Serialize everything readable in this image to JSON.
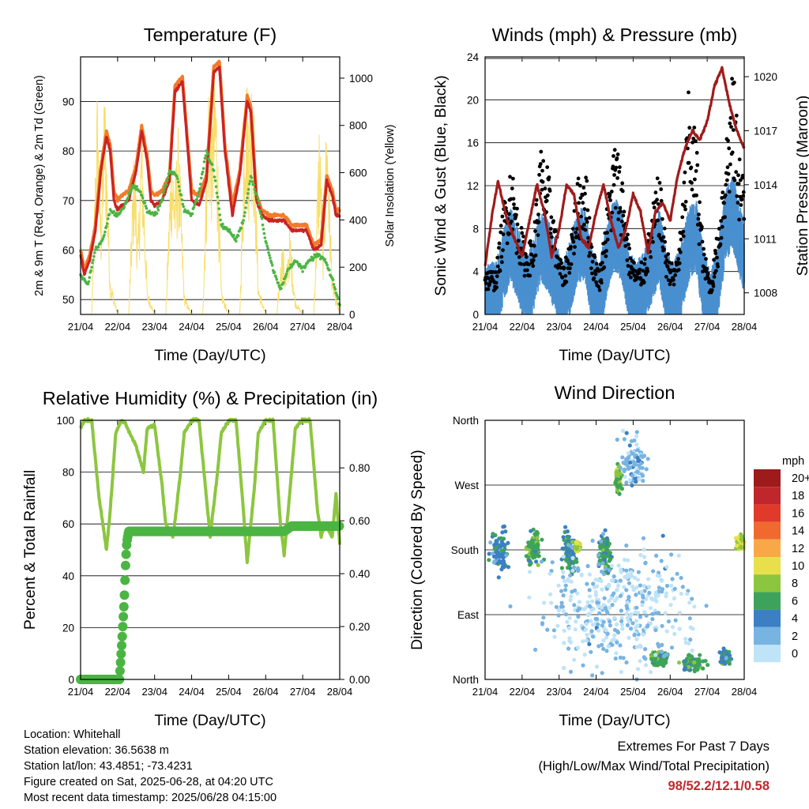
{
  "time_axis": {
    "ticks": [
      "21/04",
      "22/04",
      "23/04",
      "24/04",
      "25/04",
      "26/04",
      "27/04",
      "28/04"
    ],
    "label": "Time (Day/UTC)"
  },
  "colors": {
    "temp_2m": "#cc2222",
    "temp_9m": "#f07c2a",
    "dewpoint": "#4bb543",
    "solar": "#f8de6a",
    "wind": "#4a90d0",
    "gust": "#000000",
    "pressure": "#a01b1b",
    "rh": "#8cc63f",
    "precip": "#4bb543"
  },
  "chart_data": [
    {
      "id": "temperature",
      "type": "line",
      "title": "Temperature (F)",
      "xlabel": "Time (Day/UTC)",
      "ylabel": "2m & 9m T (Red, Orange) & 2m Td (Green)",
      "y2label": "Solar Insolation (Yellow)",
      "ylim": [
        47,
        99
      ],
      "y2lim": [
        0,
        1090
      ],
      "yticks": [
        50,
        60,
        70,
        80,
        90
      ],
      "y2ticks": [
        0,
        200,
        400,
        600,
        800,
        1000
      ],
      "x_days": [
        0,
        7
      ],
      "series": [
        {
          "key": "t2m",
          "style": "line",
          "color": "#cc2222",
          "x": [
            0,
            0.1,
            0.25,
            0.4,
            0.55,
            0.7,
            0.8,
            0.9,
            1.0,
            1.1,
            1.3,
            1.5,
            1.65,
            1.8,
            1.9,
            2.0,
            2.2,
            2.4,
            2.55,
            2.75,
            2.9,
            3.0,
            3.2,
            3.4,
            3.6,
            3.75,
            3.9,
            4.1,
            4.3,
            4.5,
            4.6,
            4.75,
            4.9,
            5.1,
            5.3,
            5.5,
            5.7,
            5.9,
            6.1,
            6.3,
            6.5,
            6.65,
            6.8,
            6.9,
            7.0
          ],
          "y": [
            59,
            55,
            58,
            64,
            76,
            83,
            80,
            70,
            68,
            69,
            70,
            76,
            84,
            78,
            70,
            69,
            70,
            74,
            92,
            94,
            80,
            70,
            69,
            74,
            96,
            97,
            80,
            67,
            75,
            90,
            88,
            70,
            67,
            66,
            66,
            66,
            64,
            64,
            64,
            60,
            61,
            74,
            71,
            67,
            67
          ]
        },
        {
          "key": "t9m",
          "style": "line",
          "color": "#f07c2a",
          "x": [
            0,
            0.1,
            0.25,
            0.4,
            0.55,
            0.7,
            0.8,
            0.9,
            1.0,
            1.1,
            1.3,
            1.5,
            1.65,
            1.8,
            1.9,
            2.0,
            2.2,
            2.4,
            2.55,
            2.75,
            2.9,
            3.0,
            3.2,
            3.4,
            3.6,
            3.75,
            3.9,
            4.1,
            4.3,
            4.5,
            4.6,
            4.75,
            4.9,
            5.1,
            5.3,
            5.5,
            5.7,
            5.9,
            6.1,
            6.3,
            6.5,
            6.65,
            6.8,
            6.9,
            7.0
          ],
          "y": [
            60,
            56,
            59,
            65,
            77,
            84,
            81,
            72,
            70,
            71,
            72,
            77,
            85,
            79,
            72,
            71,
            72,
            75,
            93,
            95,
            81,
            72,
            71,
            75,
            97,
            98,
            81,
            69,
            76,
            91,
            89,
            71,
            68,
            67,
            67,
            67,
            65,
            65,
            65,
            61,
            62,
            75,
            72,
            68,
            68
          ]
        },
        {
          "key": "td2m",
          "style": "dots",
          "color": "#4bb543",
          "x": [
            0,
            0.2,
            0.4,
            0.6,
            0.8,
            1.0,
            1.2,
            1.4,
            1.6,
            1.8,
            2.0,
            2.2,
            2.4,
            2.6,
            2.8,
            3.0,
            3.2,
            3.4,
            3.6,
            3.8,
            4.0,
            4.2,
            4.4,
            4.6,
            4.8,
            5.0,
            5.2,
            5.4,
            5.6,
            5.8,
            6.0,
            6.2,
            6.4,
            6.6,
            6.8,
            7.0
          ],
          "y": [
            55,
            53,
            60,
            62,
            68,
            67,
            69,
            73,
            72,
            68,
            67,
            70,
            76,
            75,
            68,
            67,
            72,
            80,
            76,
            65,
            64,
            62,
            66,
            75,
            70,
            62,
            56,
            52,
            56,
            58,
            56,
            58,
            59,
            58,
            54,
            49
          ]
        },
        {
          "key": "solar",
          "style": "line",
          "color": "#f8de6a",
          "axis": "y2",
          "x": [
            0,
            0.3,
            0.45,
            0.55,
            0.65,
            0.8,
            1.0,
            1.3,
            1.45,
            1.55,
            1.65,
            1.8,
            2.0,
            2.3,
            2.45,
            2.55,
            2.65,
            2.8,
            3.0,
            3.3,
            3.45,
            3.55,
            3.65,
            3.8,
            4.0,
            4.3,
            4.45,
            4.55,
            4.65,
            4.8,
            5.0,
            5.3,
            5.45,
            5.55,
            5.65,
            5.8,
            6.0,
            6.3,
            6.45,
            6.55,
            6.65,
            6.8,
            7.0
          ],
          "y": [
            0,
            0,
            900,
            400,
            950,
            150,
            0,
            0,
            700,
            300,
            800,
            100,
            0,
            0,
            700,
            550,
            750,
            80,
            0,
            0,
            950,
            800,
            1000,
            100,
            0,
            0,
            1000,
            850,
            1050,
            120,
            0,
            0,
            300,
            150,
            350,
            60,
            0,
            0,
            800,
            300,
            850,
            150,
            0
          ]
        }
      ]
    },
    {
      "id": "winds",
      "type": "line",
      "title": "Winds (mph) & Pressure (mb)",
      "xlabel": "Time (Day/UTC)",
      "ylabel": "Sonic Wind & Gust (Blue, Black)",
      "y2label": "Station Pressure (Maroon)",
      "ylim": [
        0,
        24
      ],
      "y2lim": [
        1006.8,
        1021.1
      ],
      "yticks": [
        0,
        4,
        8,
        12,
        16,
        20,
        24
      ],
      "y2ticks": [
        1008,
        1011,
        1014,
        1017,
        1020
      ],
      "x_days": [
        0,
        7
      ],
      "series": [
        {
          "key": "wind",
          "style": "band",
          "color": "#4a90d0",
          "x": [
            0,
            0.3,
            0.5,
            0.7,
            0.9,
            1.1,
            1.3,
            1.5,
            1.7,
            1.9,
            2.1,
            2.3,
            2.5,
            2.7,
            2.9,
            3.1,
            3.3,
            3.5,
            3.7,
            3.9,
            4.1,
            4.3,
            4.5,
            4.7,
            4.9,
            5.1,
            5.3,
            5.5,
            5.7,
            5.9,
            6.1,
            6.3,
            6.5,
            6.7,
            6.9,
            7.0
          ],
          "y": [
            2,
            2,
            5,
            7,
            5,
            3,
            4,
            7,
            6,
            4,
            2,
            4,
            7,
            7,
            3,
            2,
            6,
            8,
            7,
            3,
            2,
            3,
            5,
            7,
            3,
            2,
            4,
            7,
            8,
            3,
            1,
            4,
            9,
            10,
            7,
            6
          ]
        },
        {
          "key": "gust",
          "style": "dots",
          "color": "#000000",
          "x": [
            0,
            0.3,
            0.5,
            0.7,
            0.9,
            1.1,
            1.3,
            1.5,
            1.7,
            1.9,
            2.1,
            2.3,
            2.5,
            2.7,
            2.9,
            3.1,
            3.3,
            3.5,
            3.7,
            3.9,
            4.1,
            4.3,
            4.5,
            4.7,
            4.9,
            5.1,
            5.3,
            5.5,
            5.7,
            5.9,
            6.1,
            6.3,
            6.5,
            6.7,
            6.9,
            7.0
          ],
          "y": [
            4,
            4,
            10,
            14,
            9,
            6,
            7,
            15,
            13,
            8,
            4,
            7,
            12,
            14,
            6,
            4,
            10,
            16,
            13,
            6,
            4,
            5,
            9,
            13,
            6,
            4,
            8,
            20,
            16,
            6,
            3,
            8,
            16,
            22,
            14,
            12
          ]
        },
        {
          "key": "pressure",
          "style": "line",
          "color": "#a01b1b",
          "axis": "y2",
          "x": [
            0,
            0.2,
            0.35,
            0.6,
            0.8,
            1.0,
            1.2,
            1.4,
            1.6,
            1.8,
            2.0,
            2.2,
            2.4,
            2.6,
            2.8,
            3.0,
            3.2,
            3.4,
            3.6,
            3.8,
            4.0,
            4.2,
            4.4,
            4.6,
            4.8,
            5.0,
            5.2,
            5.4,
            5.6,
            5.8,
            6.0,
            6.2,
            6.4,
            6.6,
            6.8,
            7.0
          ],
          "y": [
            1009.5,
            1012.5,
            1014.2,
            1012.0,
            1011.0,
            1010.0,
            1012.0,
            1014.0,
            1012.5,
            1010.0,
            1011.5,
            1014.0,
            1013.5,
            1011.0,
            1010.5,
            1012.5,
            1014.0,
            1012.0,
            1010.5,
            1011.5,
            1013.5,
            1012.5,
            1010.2,
            1012.5,
            1013.0,
            1012.0,
            1014.5,
            1016.0,
            1017.0,
            1016.5,
            1017.5,
            1019.5,
            1020.5,
            1018.5,
            1017.0,
            1016.0
          ]
        }
      ]
    },
    {
      "id": "humidity",
      "type": "line",
      "title": "Relative Humidity (%) & Precipitation (in)",
      "xlabel": "Time (Day/UTC)",
      "ylabel": "Percent & Total Rainfall",
      "ylim": [
        0,
        100
      ],
      "y2lim": [
        0,
        0.98
      ],
      "yticks": [
        0,
        20,
        40,
        60,
        80,
        100
      ],
      "y2ticks": [
        0.0,
        0.2,
        0.4,
        0.6,
        0.8
      ],
      "y2ticklabels": [
        "0.00",
        "0.20",
        "0.40",
        "0.60",
        "0.80"
      ],
      "x_days": [
        0,
        7
      ],
      "series": [
        {
          "key": "rh",
          "style": "line",
          "color": "#8cc63f",
          "x": [
            0,
            0.1,
            0.3,
            0.5,
            0.7,
            0.8,
            0.95,
            1.1,
            1.2,
            1.3,
            1.5,
            1.7,
            1.8,
            2.0,
            2.2,
            2.3,
            2.5,
            2.7,
            2.8,
            3.0,
            3.2,
            3.4,
            3.5,
            3.7,
            3.8,
            4.0,
            4.2,
            4.4,
            4.5,
            4.7,
            4.8,
            5.0,
            5.2,
            5.4,
            5.5,
            5.7,
            5.8,
            6.0,
            6.2,
            6.4,
            6.5,
            6.6,
            6.8,
            6.9,
            7.0
          ],
          "y": [
            97,
            100,
            100,
            70,
            50,
            65,
            95,
            100,
            99,
            96,
            90,
            80,
            97,
            98,
            75,
            60,
            55,
            80,
            95,
            100,
            100,
            70,
            55,
            80,
            95,
            100,
            100,
            65,
            45,
            75,
            95,
            100,
            100,
            60,
            48,
            80,
            97,
            100,
            100,
            65,
            55,
            60,
            55,
            72,
            52
          ]
        },
        {
          "key": "precip",
          "style": "thick",
          "color": "#4bb543",
          "axis": "y2",
          "x": [
            0,
            1.05,
            1.12,
            1.18,
            1.22,
            1.25,
            1.3,
            2.0,
            3.0,
            4.0,
            5.0,
            5.5,
            5.7,
            6.0,
            7.0
          ],
          "y": [
            0,
            0,
            0.15,
            0.3,
            0.45,
            0.52,
            0.56,
            0.56,
            0.56,
            0.56,
            0.56,
            0.56,
            0.58,
            0.58,
            0.58
          ]
        }
      ]
    },
    {
      "id": "direction",
      "type": "scatter",
      "title": "Wind Direction",
      "xlabel": "Time (Day/UTC)",
      "ylabel": "Direction (Colored By Speed)",
      "ylim": [
        0,
        360
      ],
      "ytick_values": [
        0,
        90,
        180,
        270,
        360
      ],
      "ytick_labels": [
        "North",
        "East",
        "South",
        "West",
        "North"
      ],
      "x_days": [
        0,
        7
      ],
      "clusters": [
        {
          "x": 0.4,
          "dir": 180,
          "spread_x": 0.35,
          "spread_dir": 45,
          "speed": 4
        },
        {
          "x": 1.3,
          "dir": 185,
          "spread_x": 0.3,
          "spread_dir": 35,
          "speed": 6
        },
        {
          "x": 2.3,
          "dir": 180,
          "spread_x": 0.3,
          "spread_dir": 40,
          "speed": 5
        },
        {
          "x": 2.5,
          "dir": 185,
          "spread_x": 0.1,
          "spread_dir": 10,
          "speed": 9
        },
        {
          "x": 3.2,
          "dir": 175,
          "spread_x": 0.3,
          "spread_dir": 40,
          "speed": 5
        },
        {
          "x": 3.6,
          "dir": 280,
          "spread_x": 0.12,
          "spread_dir": 25,
          "speed": 7
        },
        {
          "x": 4.0,
          "dir": 300,
          "spread_x": 0.5,
          "spread_dir": 60,
          "speed": 2
        },
        {
          "x": 4.7,
          "dir": 30,
          "spread_x": 0.35,
          "spread_dir": 15,
          "speed": 6
        },
        {
          "x": 5.6,
          "dir": 22,
          "spread_x": 0.5,
          "spread_dir": 15,
          "speed": 6
        },
        {
          "x": 6.5,
          "dir": 30,
          "spread_x": 0.2,
          "spread_dir": 15,
          "speed": 5
        },
        {
          "x": 6.9,
          "dir": 190,
          "spread_x": 0.15,
          "spread_dir": 15,
          "speed": 9
        },
        {
          "x": 3.5,
          "dir": 100,
          "spread_x": 3.0,
          "spread_dir": 120,
          "speed": 1
        }
      ],
      "legend": {
        "title": "mph",
        "labels": [
          "20+",
          "18",
          "16",
          "14",
          "12",
          "10",
          "8",
          "6",
          "4",
          "2",
          "0"
        ],
        "colors": [
          "#9e1b1b",
          "#c0272d",
          "#e03a2a",
          "#f06a30",
          "#f9a848",
          "#e8e04a",
          "#8cc63f",
          "#3ea35a",
          "#3c7fc2",
          "#78b4e2",
          "#bfe3f7"
        ]
      }
    }
  ],
  "info": {
    "location": "Location: Whitehall",
    "elevation": "Station elevation: 36.5638 m",
    "latlon": "Station lat/lon: 43.4851; -73.4231",
    "created": "Figure created on Sat, 2025-06-28, at 04:20 UTC",
    "recent": "Most recent data timestamp: 2025/06/28 04:15:00"
  },
  "extremes": {
    "title": "Extremes For Past 7 Days",
    "subtitle": "(High/Low/Max Wind/Total Precipitation)",
    "values": "98/52.2/12.1/0.58"
  }
}
